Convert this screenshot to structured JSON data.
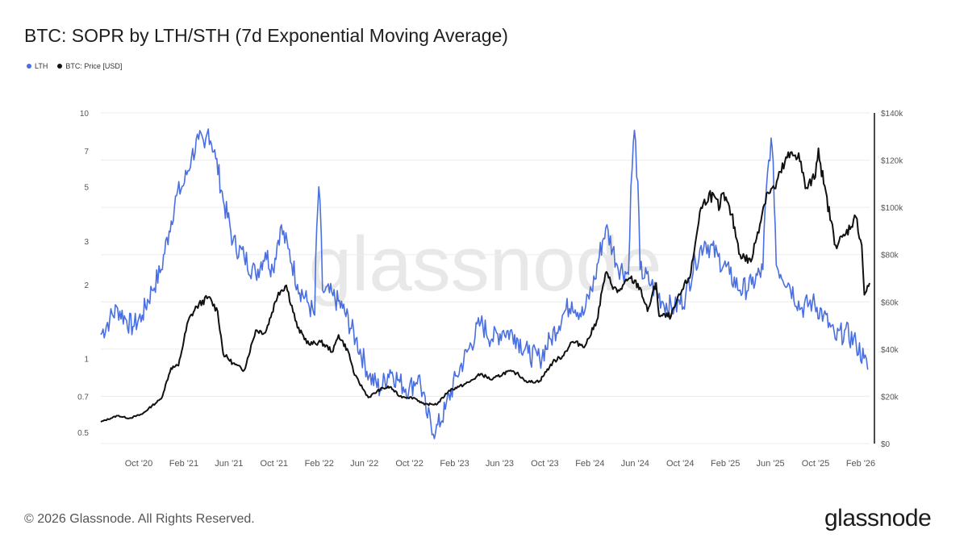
{
  "header": {
    "title": "BTC: SOPR by LTH/STH (7d Exponential Moving Average)"
  },
  "legend": [
    {
      "label": "LTH",
      "color": "#4a6fe0"
    },
    {
      "label": "BTC: Price [USD]",
      "color": "#111111"
    }
  ],
  "footer": {
    "copyright": "© 2026 Glassnode. All Rights Reserved.",
    "logo_text": "glassnode",
    "watermark_text": "glassnode"
  },
  "chart_data": {
    "type": "line",
    "title": "BTC: SOPR by LTH/STH (7d Exponential Moving Average)",
    "x_ticks": [
      "Oct '20",
      "Feb '21",
      "Jun '21",
      "Oct '21",
      "Feb '22",
      "Jun '22",
      "Oct '22",
      "Feb '23",
      "Jun '23",
      "Oct '23",
      "Feb '24",
      "Jun '24",
      "Oct '24",
      "Feb '25",
      "Jun '25",
      "Oct '25",
      "Feb '26"
    ],
    "x_range": [
      "2020-07-01",
      "2026-02-20"
    ],
    "y_left": {
      "scale": "log",
      "range": [
        0.45,
        10
      ],
      "ticks": [
        0.5,
        0.7,
        1,
        2,
        3,
        5,
        7,
        10
      ],
      "tick_labels": [
        "0.5",
        "0.7",
        "1",
        "2",
        "3",
        "5",
        "7",
        "10"
      ]
    },
    "y_right": {
      "scale": "linear",
      "range": [
        0,
        140000
      ],
      "ticks": [
        0,
        20000,
        40000,
        60000,
        80000,
        100000,
        120000,
        140000
      ],
      "tick_labels": [
        "$0",
        "$20k",
        "$40k",
        "$60k",
        "$80k",
        "$100k",
        "$120k",
        "$140k"
      ]
    },
    "grid": "horizontal",
    "legend_position": "top-left",
    "series": [
      {
        "name": "LTH",
        "axis": "left",
        "color": "#4a6fe0",
        "points": [
          [
            "2020-07-01",
            1.25
          ],
          [
            "2020-07-25",
            1.45
          ],
          [
            "2020-08-15",
            1.6
          ],
          [
            "2020-09-05",
            1.45
          ],
          [
            "2020-09-25",
            1.35
          ],
          [
            "2020-10-20",
            1.5
          ],
          [
            "2020-11-15",
            1.9
          ],
          [
            "2020-12-10",
            2.3
          ],
          [
            "2020-12-31",
            3.3
          ],
          [
            "2021-01-20",
            4.6
          ],
          [
            "2021-02-10",
            5.2
          ],
          [
            "2021-03-01",
            6.6
          ],
          [
            "2021-03-20",
            7.8
          ],
          [
            "2021-04-05",
            7.2
          ],
          [
            "2021-04-15",
            8.6
          ],
          [
            "2021-05-05",
            6.5
          ],
          [
            "2021-05-25",
            4.4
          ],
          [
            "2021-06-20",
            3.0
          ],
          [
            "2021-07-20",
            2.6
          ],
          [
            "2021-08-20",
            2.2
          ],
          [
            "2021-09-15",
            2.7
          ],
          [
            "2021-10-05",
            2.3
          ],
          [
            "2021-10-25",
            3.4
          ],
          [
            "2021-11-15",
            2.8
          ],
          [
            "2021-12-10",
            2.0
          ],
          [
            "2022-01-05",
            1.7
          ],
          [
            "2022-01-25",
            1.5
          ],
          [
            "2022-02-05",
            5.0
          ],
          [
            "2022-02-15",
            1.9
          ],
          [
            "2022-03-15",
            1.8
          ],
          [
            "2022-04-10",
            1.6
          ],
          [
            "2022-05-15",
            1.2
          ],
          [
            "2022-06-20",
            0.85
          ],
          [
            "2022-07-20",
            0.75
          ],
          [
            "2022-08-15",
            0.9
          ],
          [
            "2022-09-10",
            0.8
          ],
          [
            "2022-10-05",
            0.75
          ],
          [
            "2022-10-30",
            0.85
          ],
          [
            "2022-11-20",
            0.6
          ],
          [
            "2022-12-15",
            0.5
          ],
          [
            "2023-01-10",
            0.62
          ],
          [
            "2023-02-10",
            0.85
          ],
          [
            "2023-03-15",
            1.1
          ],
          [
            "2023-04-15",
            1.4
          ],
          [
            "2023-05-15",
            1.2
          ],
          [
            "2023-06-15",
            1.3
          ],
          [
            "2023-07-15",
            1.25
          ],
          [
            "2023-08-20",
            1.05
          ],
          [
            "2023-09-20",
            1.0
          ],
          [
            "2023-10-20",
            1.2
          ],
          [
            "2023-11-20",
            1.5
          ],
          [
            "2023-12-15",
            1.7
          ],
          [
            "2024-01-15",
            1.5
          ],
          [
            "2024-02-15",
            2.1
          ],
          [
            "2024-03-15",
            3.4
          ],
          [
            "2024-04-15",
            2.4
          ],
          [
            "2024-05-15",
            2.2
          ],
          [
            "2024-05-31",
            8.5
          ],
          [
            "2024-06-15",
            2.3
          ],
          [
            "2024-07-15",
            2.0
          ],
          [
            "2024-08-15",
            1.7
          ],
          [
            "2024-09-15",
            1.6
          ],
          [
            "2024-10-15",
            1.8
          ],
          [
            "2024-11-10",
            2.5
          ],
          [
            "2024-12-05",
            3.0
          ],
          [
            "2025-01-10",
            2.6
          ],
          [
            "2025-02-10",
            2.2
          ],
          [
            "2025-03-10",
            1.9
          ],
          [
            "2025-04-10",
            2.0
          ],
          [
            "2025-05-10",
            2.3
          ],
          [
            "2025-06-01",
            7.9
          ],
          [
            "2025-06-15",
            2.4
          ],
          [
            "2025-07-20",
            2.0
          ],
          [
            "2025-08-20",
            1.6
          ],
          [
            "2025-09-20",
            1.7
          ],
          [
            "2025-10-20",
            1.5
          ],
          [
            "2025-11-20",
            1.2
          ],
          [
            "2025-12-15",
            1.3
          ],
          [
            "2026-01-15",
            1.15
          ],
          [
            "2026-02-05",
            1.0
          ],
          [
            "2026-02-15",
            0.9
          ]
        ]
      },
      {
        "name": "BTC: Price [USD]",
        "axis": "right",
        "color": "#111111",
        "points": [
          [
            "2020-07-01",
            9200
          ],
          [
            "2020-08-15",
            11800
          ],
          [
            "2020-09-15",
            10700
          ],
          [
            "2020-10-20",
            12500
          ],
          [
            "2020-11-15",
            16000
          ],
          [
            "2020-12-10",
            19000
          ],
          [
            "2021-01-05",
            32000
          ],
          [
            "2021-01-25",
            33000
          ],
          [
            "2021-02-20",
            52000
          ],
          [
            "2021-03-15",
            58000
          ],
          [
            "2021-04-15",
            62000
          ],
          [
            "2021-05-10",
            56000
          ],
          [
            "2021-05-25",
            38000
          ],
          [
            "2021-06-20",
            34000
          ],
          [
            "2021-07-20",
            31000
          ],
          [
            "2021-08-20",
            48000
          ],
          [
            "2021-09-15",
            47000
          ],
          [
            "2021-10-20",
            64000
          ],
          [
            "2021-11-10",
            67000
          ],
          [
            "2021-12-10",
            49000
          ],
          [
            "2022-01-10",
            42000
          ],
          [
            "2022-02-10",
            43000
          ],
          [
            "2022-03-15",
            39000
          ],
          [
            "2022-03-30",
            46000
          ],
          [
            "2022-04-25",
            39000
          ],
          [
            "2022-05-12",
            29000
          ],
          [
            "2022-06-18",
            19500
          ],
          [
            "2022-07-20",
            23000
          ],
          [
            "2022-08-15",
            24000
          ],
          [
            "2022-09-10",
            20000
          ],
          [
            "2022-10-20",
            19300
          ],
          [
            "2022-11-15",
            16500
          ],
          [
            "2022-12-20",
            16800
          ],
          [
            "2023-01-20",
            22500
          ],
          [
            "2023-02-15",
            24000
          ],
          [
            "2023-03-15",
            26000
          ],
          [
            "2023-04-15",
            29500
          ],
          [
            "2023-05-15",
            27000
          ],
          [
            "2023-06-25",
            30500
          ],
          [
            "2023-07-20",
            29800
          ],
          [
            "2023-08-20",
            26000
          ],
          [
            "2023-09-20",
            26500
          ],
          [
            "2023-10-25",
            34500
          ],
          [
            "2023-11-20",
            37000
          ],
          [
            "2023-12-15",
            43000
          ],
          [
            "2024-01-20",
            41500
          ],
          [
            "2024-02-20",
            52000
          ],
          [
            "2024-03-14",
            72000
          ],
          [
            "2024-04-15",
            64000
          ],
          [
            "2024-05-20",
            70000
          ],
          [
            "2024-06-15",
            66000
          ],
          [
            "2024-07-05",
            56000
          ],
          [
            "2024-07-28",
            68000
          ],
          [
            "2024-08-05",
            54000
          ],
          [
            "2024-09-06",
            54000
          ],
          [
            "2024-09-30",
            63000
          ],
          [
            "2024-10-29",
            72000
          ],
          [
            "2024-11-22",
            98000
          ],
          [
            "2024-12-17",
            106000
          ],
          [
            "2025-01-15",
            100000
          ],
          [
            "2025-01-22",
            106000
          ],
          [
            "2025-02-15",
            97000
          ],
          [
            "2025-03-10",
            80000
          ],
          [
            "2025-04-08",
            77000
          ],
          [
            "2025-05-20",
            106000
          ],
          [
            "2025-06-10",
            108000
          ],
          [
            "2025-07-14",
            121000
          ],
          [
            "2025-08-14",
            123000
          ],
          [
            "2025-09-01",
            108000
          ],
          [
            "2025-09-25",
            112000
          ],
          [
            "2025-10-06",
            125000
          ],
          [
            "2025-10-20",
            110000
          ],
          [
            "2025-11-21",
            84000
          ],
          [
            "2025-12-15",
            88000
          ],
          [
            "2026-01-14",
            96000
          ],
          [
            "2026-01-30",
            84000
          ],
          [
            "2026-02-06",
            63000
          ],
          [
            "2026-02-20",
            68000
          ]
        ]
      }
    ]
  }
}
